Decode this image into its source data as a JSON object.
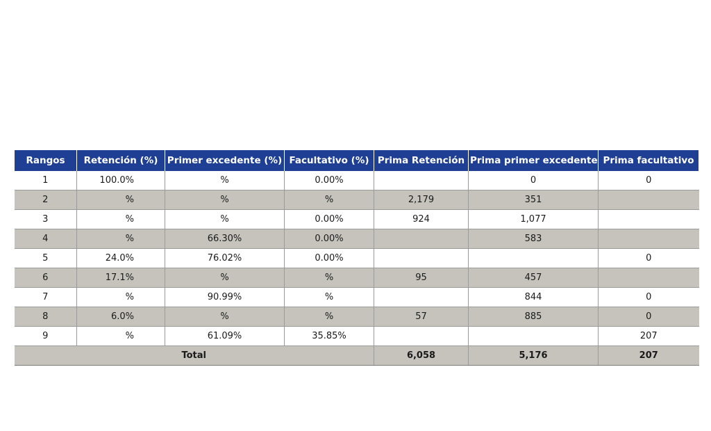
{
  "table": {
    "headers": [
      "Rangos",
      "Retención (%)",
      "Primer excedente (%)",
      "Facultativo (%)",
      "Prima Retención",
      "Prima primer excedente",
      "Prima facultativo"
    ],
    "rows": [
      [
        "1",
        "100.0%",
        "%",
        "0.00%",
        "",
        "0",
        "0"
      ],
      [
        "2",
        "%",
        "%",
        "%",
        "2,179",
        "351",
        ""
      ],
      [
        "3",
        "%",
        "%",
        "0.00%",
        "924",
        "1,077",
        ""
      ],
      [
        "4",
        "%",
        "66.30%",
        "0.00%",
        "",
        "583",
        ""
      ],
      [
        "5",
        "24.0%",
        "76.02%",
        "0.00%",
        "",
        "",
        "0"
      ],
      [
        "6",
        "17.1%",
        "%",
        "%",
        "95",
        "457",
        ""
      ],
      [
        "7",
        "%",
        "90.99%",
        "%",
        "",
        "844",
        "0"
      ],
      [
        "8",
        "6.0%",
        "%",
        "%",
        "57",
        "885",
        "0"
      ],
      [
        "9",
        "%",
        "61.09%",
        "35.85%",
        "",
        "",
        "207"
      ]
    ],
    "total": {
      "label": "Total",
      "prima_retencion": "6,058",
      "prima_primer_excedente": "5,176",
      "prima_facultativo": "207"
    }
  },
  "colors": {
    "header_bg": "#1e3f93",
    "header_text": "#ffffff",
    "shaded_row": "#c6c3bd"
  }
}
